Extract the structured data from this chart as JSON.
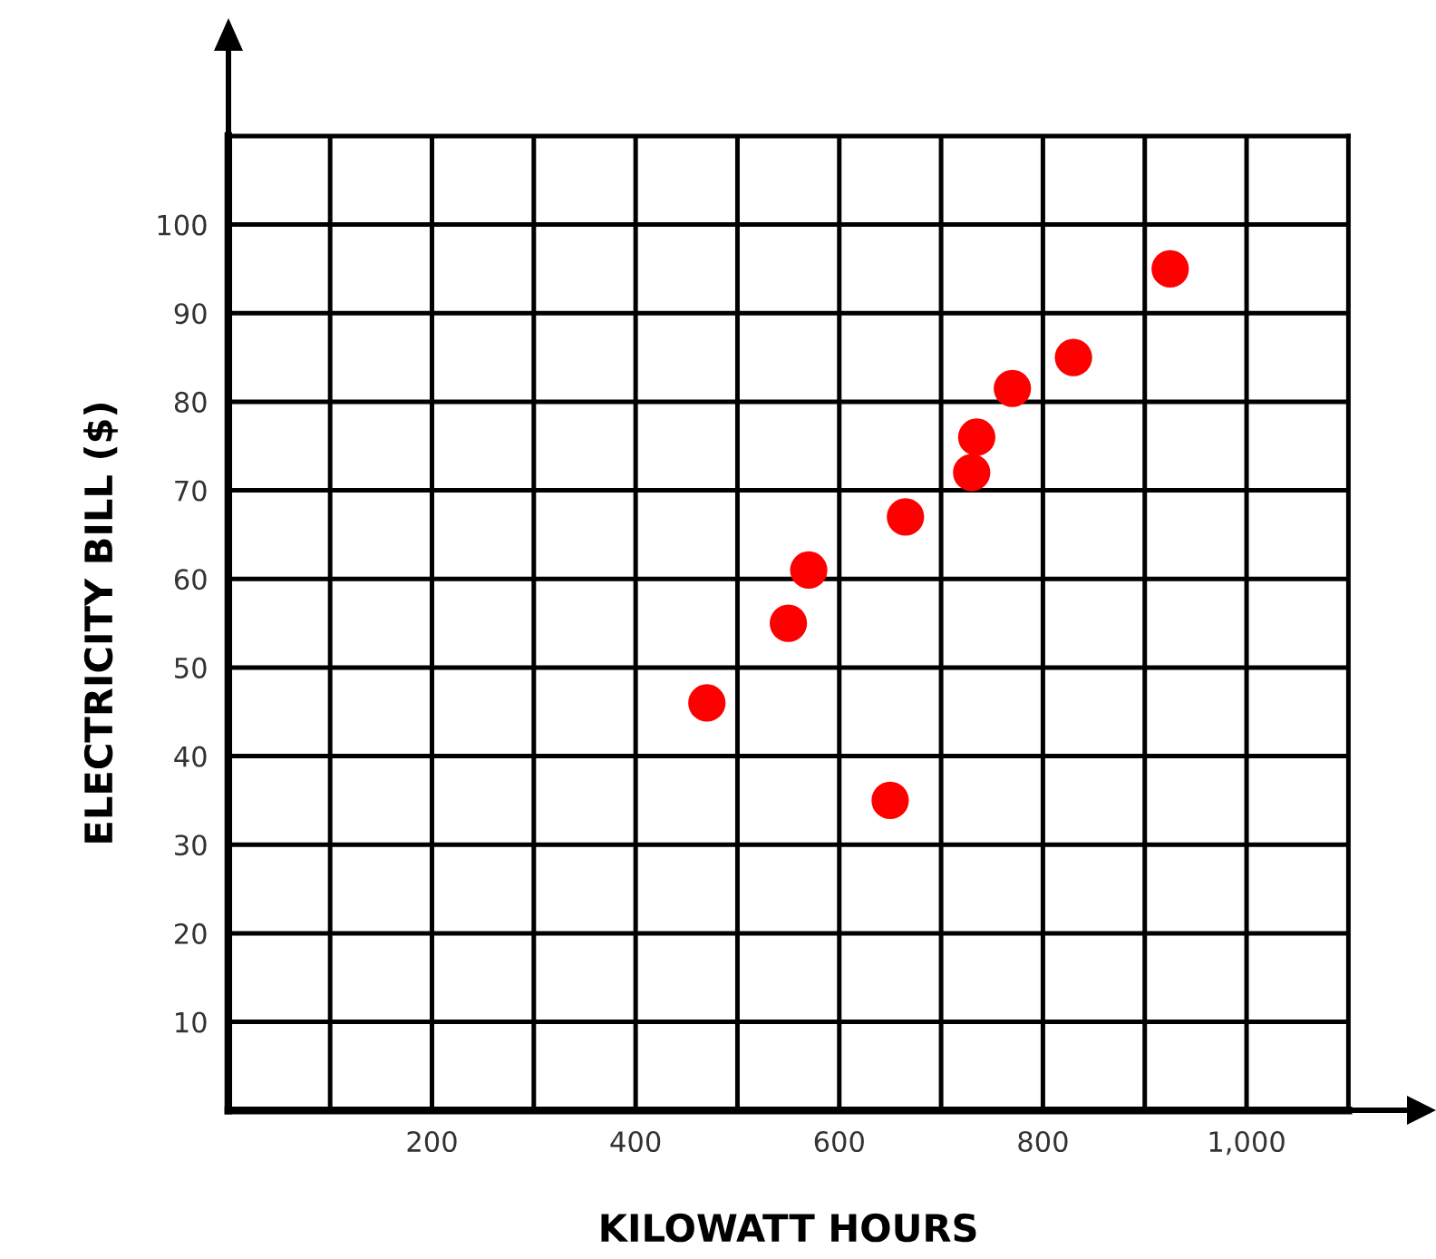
{
  "chart_data": {
    "type": "scatter",
    "xlabel": "KILOWATT HOURS",
    "ylabel": "ELECTRICITY BILL ($)",
    "x": [
      470,
      550,
      570,
      650,
      665,
      730,
      735,
      770,
      830,
      925
    ],
    "values": [
      46,
      55,
      61,
      35,
      67,
      72,
      76,
      81.5,
      85,
      95
    ],
    "color": "#ff0000",
    "marker": "circle",
    "xlim": [
      0,
      1100
    ],
    "ylim": [
      0,
      110
    ],
    "xticks": [
      {
        "value": 100,
        "label": null
      },
      200,
      {
        "value": 300,
        "label": null
      },
      400,
      {
        "value": 500,
        "label": null
      },
      600,
      {
        "value": 700,
        "label": null
      },
      800,
      {
        "value": 900,
        "label": null
      },
      {
        "value": 1000,
        "label": "1,000"
      }
    ],
    "yticks": [
      10,
      20,
      30,
      40,
      50,
      60,
      70,
      80,
      90,
      100
    ],
    "grid": true,
    "legend": false
  }
}
